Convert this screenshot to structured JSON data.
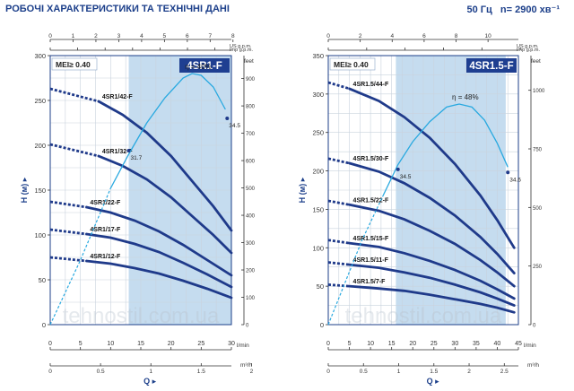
{
  "header": {
    "title": "РОБОЧІ ХАРАКТЕРИСТИКИ ТА ТЕХНІЧНІ ДАНІ",
    "frequency": "50 Гц",
    "speed": "n= 2900 хв⁻¹"
  },
  "watermark": "tehnostil.com.ua",
  "colors": {
    "curve": "#1f3a8a",
    "efficiency": "#29a9e0",
    "band": "#c5dcef",
    "grid": "#c9d3de",
    "frame": "#1c3f8a",
    "title_bg": "#1f3f91"
  },
  "chart_data": [
    {
      "type": "line",
      "title": "4SR1-F",
      "mei_label": "MEI≥ 0.40",
      "ylabel": "H (м)",
      "xlabel": "Q",
      "right_unit": "feet",
      "x_unit_bottom1": "l/min",
      "x_unit_bottom2": "m³/h",
      "x_unit_top1": "US g.p.m.",
      "x_unit_top2": "Imp g.p.m.",
      "x_units": "l/min",
      "xlim": [
        0,
        30
      ],
      "ylim": [
        0,
        300
      ],
      "grid": true,
      "x_ticks_lmin": [
        0,
        5,
        10,
        15,
        20,
        25,
        30
      ],
      "x_ticks_m3h": [
        0,
        0.5,
        1,
        1.5,
        2
      ],
      "x_ticks_usgpm": [
        0,
        1,
        2,
        3,
        4,
        5,
        6,
        7,
        8
      ],
      "x_ticks_impgpm": [
        0,
        1,
        2,
        3,
        4,
        5,
        6
      ],
      "y_ticks": [
        0,
        50,
        100,
        150,
        200,
        250,
        300
      ],
      "y2_ticks_feet": [
        0,
        100,
        200,
        300,
        400,
        500,
        600,
        700,
        800,
        900
      ],
      "band": [
        13,
        30
      ],
      "series": [
        {
          "name": "4SR1/42-F",
          "stub": [
            [
              0,
              263
            ],
            [
              8,
              249
            ]
          ],
          "x": [
            8,
            12,
            16,
            20,
            24,
            27,
            30
          ],
          "y": [
            249,
            234,
            214,
            188,
            156,
            132,
            105
          ]
        },
        {
          "name": "4SR1/32-F",
          "stub": [
            [
              0,
              201
            ],
            [
              8,
              188
            ]
          ],
          "x": [
            8,
            12,
            16,
            20,
            24,
            27,
            30
          ],
          "y": [
            188,
            177,
            162,
            142,
            118,
            100,
            80
          ]
        },
        {
          "name": "4SR1/22-F",
          "stub": [
            [
              0,
              137
            ],
            [
              6,
              131
            ]
          ],
          "x": [
            6,
            10,
            14,
            18,
            22,
            26,
            30
          ],
          "y": [
            131,
            125,
            116,
            104,
            89,
            72,
            55
          ]
        },
        {
          "name": "4SR1/17-F",
          "stub": [
            [
              0,
              106
            ],
            [
              6,
              101
            ]
          ],
          "x": [
            6,
            10,
            14,
            18,
            22,
            26,
            30
          ],
          "y": [
            101,
            97,
            90,
            81,
            69,
            56,
            42
          ]
        },
        {
          "name": "4SR1/12-F",
          "stub": [
            [
              0,
              75
            ],
            [
              6,
              71
            ]
          ],
          "x": [
            6,
            10,
            14,
            18,
            22,
            26,
            30
          ],
          "y": [
            71,
            68,
            63,
            57,
            49,
            40,
            30
          ]
        }
      ],
      "efficiency": {
        "label": "η = 40%",
        "x": [
          0,
          5,
          10,
          13,
          16,
          19,
          22,
          23.5,
          25,
          27,
          29
        ],
        "y": [
          0,
          72,
          152,
          190,
          225,
          253,
          275,
          280,
          278,
          265,
          240
        ],
        "dashed_until": 10
      },
      "annotations": [
        {
          "text": "31.7",
          "x": 13,
          "y": 194
        },
        {
          "text": "34.5",
          "x": 29.3,
          "y": 230
        }
      ]
    },
    {
      "type": "line",
      "title": "4SR1.5-F",
      "mei_label": "MEI≥ 0.40",
      "ylabel": "H (м)",
      "xlabel": "Q",
      "right_unit": "feet",
      "x_unit_bottom1": "l/min",
      "x_unit_bottom2": "m³/h",
      "x_unit_top1": "US g.p.m.",
      "x_unit_top2": "Imp g.p.m.",
      "x_units": "l/min",
      "xlim": [
        0,
        45
      ],
      "ylim": [
        0,
        350
      ],
      "grid": true,
      "x_ticks_lmin": [
        0,
        5,
        10,
        15,
        20,
        25,
        30,
        35,
        40,
        45
      ],
      "x_ticks_m3h": [
        0,
        0.5,
        1,
        1.5,
        2,
        2.5
      ],
      "x_ticks_usgpm": [
        0,
        2,
        4,
        6,
        8,
        10
      ],
      "x_ticks_impgpm": [
        0,
        2,
        4,
        6,
        8,
        10
      ],
      "y_ticks": [
        0,
        50,
        100,
        150,
        200,
        250,
        300,
        350
      ],
      "y2_ticks_feet": [
        0,
        250,
        500,
        750,
        1000
      ],
      "band": [
        16,
        42
      ],
      "series": [
        {
          "name": "4SR1.5/44-F",
          "stub": [
            [
              0,
              315
            ],
            [
              5,
              307
            ]
          ],
          "x": [
            5,
            12,
            18,
            24,
            30,
            36,
            40,
            44
          ],
          "y": [
            307,
            291,
            270,
            243,
            209,
            168,
            136,
            100
          ]
        },
        {
          "name": "4SR1.5/30-F",
          "stub": [
            [
              0,
              216
            ],
            [
              5,
              210
            ]
          ],
          "x": [
            5,
            12,
            18,
            24,
            30,
            36,
            40,
            44
          ],
          "y": [
            210,
            199,
            184,
            165,
            142,
            114,
            92,
            67
          ]
        },
        {
          "name": "4SR1.5/22-F",
          "stub": [
            [
              0,
              161
            ],
            [
              5,
              156
            ]
          ],
          "x": [
            5,
            12,
            18,
            24,
            30,
            36,
            40,
            44
          ],
          "y": [
            156,
            148,
            137,
            122,
            105,
            84,
            68,
            50
          ]
        },
        {
          "name": "4SR1.5/15-F",
          "stub": [
            [
              0,
              110
            ],
            [
              5,
              106
            ]
          ],
          "x": [
            5,
            12,
            18,
            24,
            30,
            36,
            40,
            44
          ],
          "y": [
            106,
            101,
            93,
            83,
            71,
            57,
            46,
            34
          ]
        },
        {
          "name": "4SR1.5/11-F",
          "stub": [
            [
              0,
              81
            ],
            [
              5,
              78
            ]
          ],
          "x": [
            5,
            12,
            18,
            24,
            30,
            36,
            40,
            44
          ],
          "y": [
            78,
            74,
            68,
            61,
            52,
            42,
            34,
            25
          ]
        },
        {
          "name": "4SR1.5/7-F",
          "stub": [
            [
              0,
              52
            ],
            [
              5,
              50
            ]
          ],
          "x": [
            5,
            12,
            18,
            24,
            30,
            36,
            40,
            44
          ],
          "y": [
            50,
            47,
            44,
            39,
            33,
            27,
            22,
            16
          ]
        }
      ],
      "efficiency": {
        "label": "η = 48%",
        "x": [
          0,
          8,
          13,
          16.5,
          20,
          24,
          28,
          31,
          34,
          37,
          40,
          42.5
        ],
        "y": [
          0,
          110,
          168,
          208,
          238,
          264,
          283,
          287,
          283,
          266,
          236,
          205
        ],
        "dashed_until": 13
      },
      "annotations": [
        {
          "text": "34.5",
          "x": 16.5,
          "y": 202
        },
        {
          "text": "34.6",
          "x": 42.5,
          "y": 198
        }
      ]
    }
  ]
}
